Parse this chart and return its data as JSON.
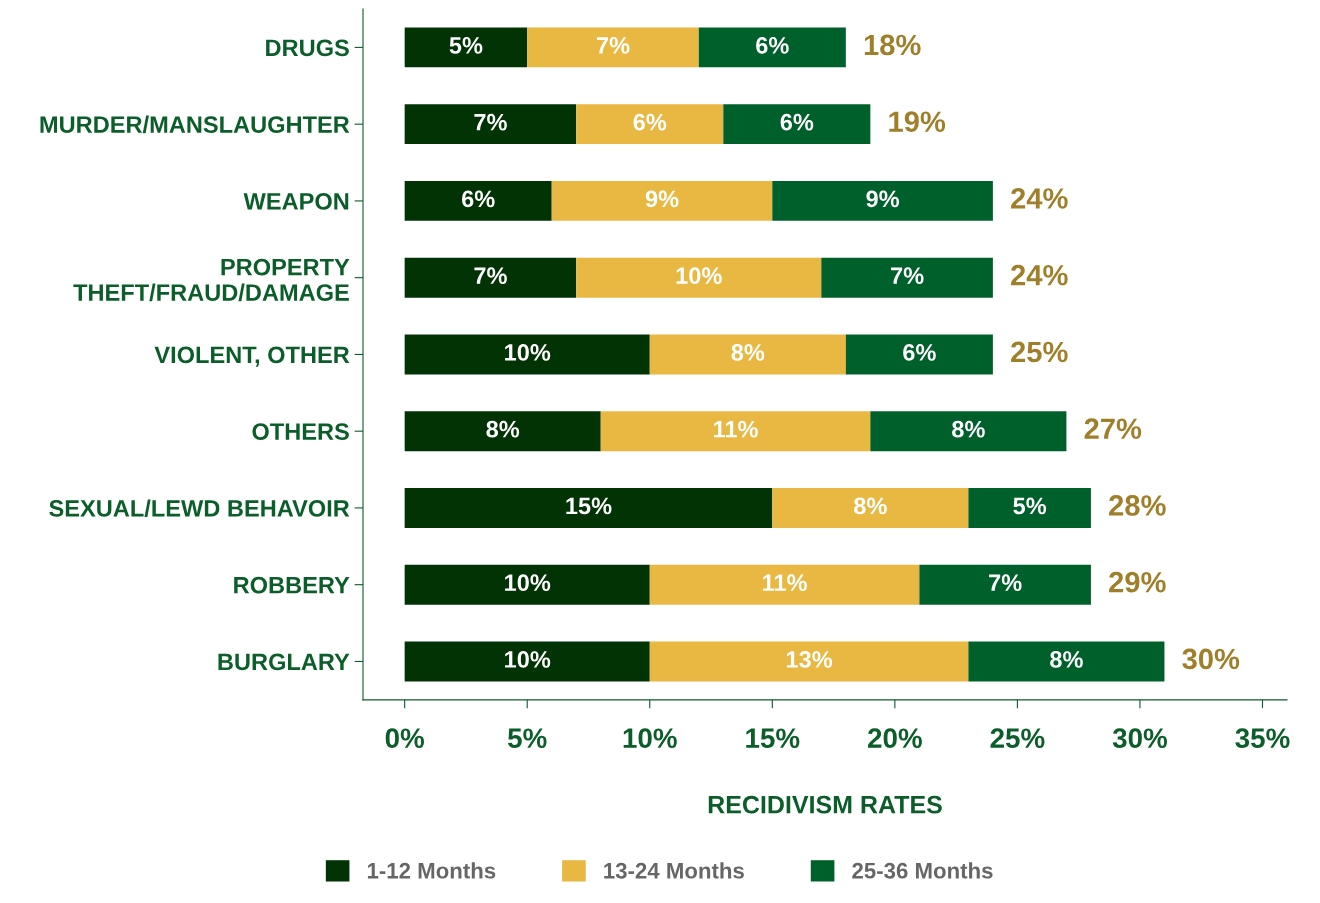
{
  "chart_data": {
    "type": "bar",
    "orientation": "horizontal",
    "stacked": true,
    "categories": [
      "DRUGS",
      "MURDER/MANSLAUGHTER",
      "WEAPON",
      "PROPERTY\nTHEFT/FRAUD/DAMAGE",
      "VIOLENT, OTHER",
      "OTHERS",
      "SEXUAL/LEWD BEHAVOIR",
      "ROBBERY",
      "BURGLARY"
    ],
    "series": [
      {
        "name": "1-12 Months",
        "color": "#023304",
        "values": [
          5,
          7,
          6,
          7,
          10,
          8,
          15,
          10,
          10
        ],
        "value_labels": [
          "5%",
          "7%",
          "6%",
          "7%",
          "10%",
          "8%",
          "15%",
          "10%",
          "10%"
        ]
      },
      {
        "name": "13-24 Months",
        "color": "#e8b843",
        "values": [
          7,
          6,
          9,
          10,
          8,
          11,
          8,
          11,
          13
        ],
        "value_labels": [
          "7%",
          "6%",
          "9%",
          "10%",
          "8%",
          "11%",
          "8%",
          "11%",
          "13%"
        ]
      },
      {
        "name": "25-36 Months",
        "color": "#00602b",
        "values": [
          6,
          6,
          9,
          7,
          6,
          8,
          5,
          7,
          8
        ],
        "value_labels": [
          "6%",
          "6%",
          "9%",
          "7%",
          "6%",
          "8%",
          "5%",
          "7%",
          "8%"
        ]
      }
    ],
    "totals": [
      "18%",
      "19%",
      "24%",
      "24%",
      "25%",
      "27%",
      "28%",
      "29%",
      "30%"
    ],
    "xlabel": "RECIDIVISM RATES",
    "xlim": [
      -1.7,
      36
    ],
    "xticks": [
      {
        "value": 0,
        "label": "0%"
      },
      {
        "value": 5,
        "label": "5%"
      },
      {
        "value": 10,
        "label": "10%"
      },
      {
        "value": 15,
        "label": "15%"
      },
      {
        "value": 20,
        "label": "20%"
      },
      {
        "value": 25,
        "label": "25%"
      },
      {
        "value": 30,
        "label": "30%"
      },
      {
        "value": 35,
        "label": "35%"
      }
    ],
    "legend": "bottom",
    "grid": false
  }
}
